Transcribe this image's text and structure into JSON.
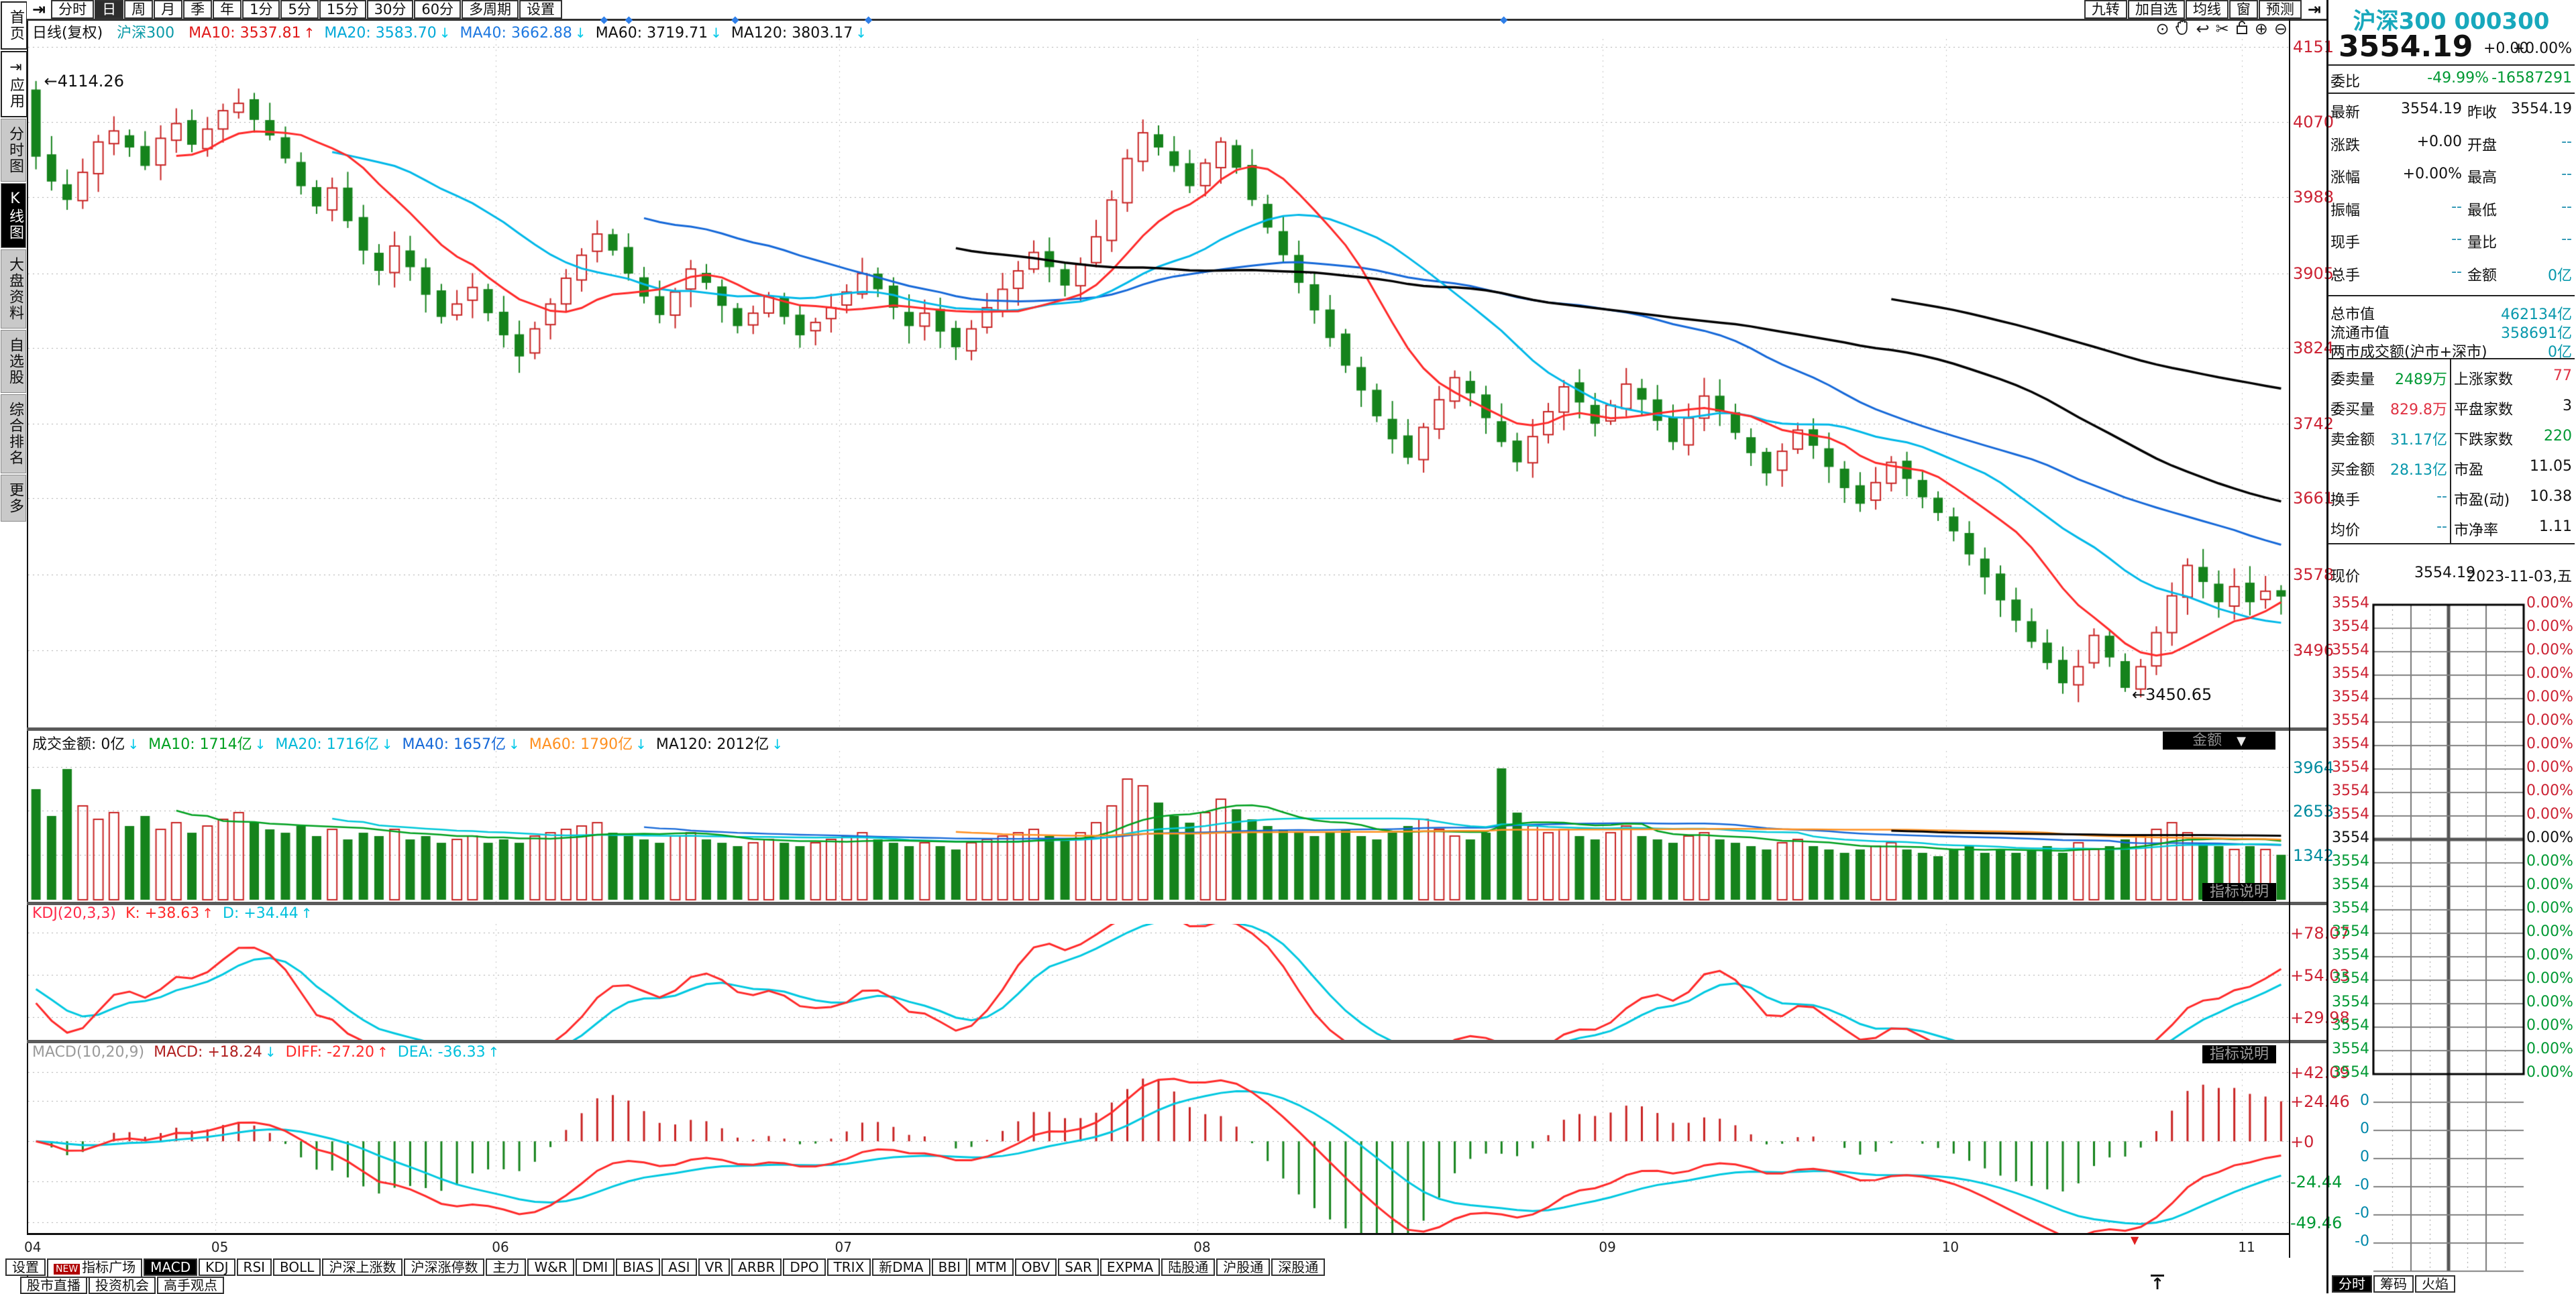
{
  "palette": {
    "up_red": "#c82323",
    "down_green": "#15831c",
    "ma10": "#ff2a2a",
    "ma20": "#00b8e8",
    "ma40": "#1568d8",
    "ma_black": "#000000",
    "vol_ma10": "#00a020",
    "vol_ma20": "#00c8d8",
    "vol_ma40": "#1568d8",
    "vol_ma60": "#ff9020",
    "vol_ma120": "#000000",
    "kdj_k": "#ff2a2a",
    "kdj_d": "#00c8e0",
    "macd_diff": "#ff2a2a",
    "macd_dea": "#00c8e0",
    "axis_red": "#cc2233",
    "axis_teal": "#008ca0",
    "axis_green": "#009933"
  },
  "sidebar": {
    "items": [
      {
        "label": "首页",
        "style": "frame",
        "selected": false
      },
      {
        "label": "应用",
        "style": "frame",
        "icon": "play-to-bar",
        "selected": false
      },
      {
        "label": "分时图",
        "style": "plain",
        "selected": false
      },
      {
        "label": "K线图",
        "style": "plain",
        "selected": true
      },
      {
        "label": "大盘资料",
        "style": "plain",
        "selected": false
      },
      {
        "label": "自选股",
        "style": "plain",
        "selected": false
      },
      {
        "label": "综合排名",
        "style": "plain",
        "selected": false
      },
      {
        "label": "更多",
        "style": "plain",
        "selected": false
      }
    ]
  },
  "toolbar": {
    "left_icon": "⇥",
    "periods": [
      {
        "label": "分时",
        "selected": false
      },
      {
        "label": "日",
        "selected": true
      },
      {
        "label": "周",
        "selected": false
      },
      {
        "label": "月",
        "selected": false
      },
      {
        "label": "季",
        "selected": false
      },
      {
        "label": "年",
        "selected": false
      },
      {
        "label": "1分",
        "selected": false
      },
      {
        "label": "5分",
        "selected": false
      },
      {
        "label": "15分",
        "selected": false
      },
      {
        "label": "30分",
        "selected": false
      },
      {
        "label": "60分",
        "selected": false
      },
      {
        "label": "多周期",
        "selected": false
      },
      {
        "label": "设置",
        "selected": false
      }
    ],
    "right_buttons": [
      "九转",
      "加自选",
      "均线",
      "窗",
      "预测"
    ],
    "right_icon": "⇥"
  },
  "legend": {
    "period": "日线(复权)",
    "symbol": "沪深300",
    "items": [
      {
        "text": "MA10: 3537.81",
        "color": "#e01818",
        "arrow": "↑",
        "arrow_color": "#e01818"
      },
      {
        "text": "MA20: 3583.70",
        "color": "#00a8d8",
        "arrow": "↓",
        "arrow_color": "#00c8e8"
      },
      {
        "text": "MA40: 3662.88",
        "color": "#1e78e0",
        "arrow": "↓",
        "arrow_color": "#00c8e8"
      },
      {
        "text": "MA60: 3719.71",
        "color": "#101010",
        "arrow": "↓",
        "arrow_color": "#00c8e8"
      },
      {
        "text": "MA120: 3803.17",
        "color": "#101010",
        "arrow": "↓",
        "arrow_color": "#00c8e8"
      }
    ]
  },
  "chart_icons": [
    "eye",
    "hand",
    "undo",
    "scissors",
    "lock",
    "zoom-in",
    "zoom-out"
  ],
  "markers": {
    "glyph": "◆",
    "fractions": [
      0.253,
      0.264,
      0.311,
      0.37,
      0.651
    ]
  },
  "chart_data": {
    "type": "candlestick",
    "symbol": "沪深300",
    "period": "日线",
    "x_labels": [
      "04",
      "05",
      "06",
      "07",
      "08",
      "09",
      "10",
      "11"
    ],
    "month_start_indices": [
      0,
      12,
      30,
      52,
      75,
      101,
      123,
      142
    ],
    "closes": [
      4032,
      4005,
      3985,
      4015,
      4048,
      4060,
      4042,
      4022,
      4052,
      4068,
      4045,
      4062,
      4082,
      4090,
      4072,
      4055,
      4030,
      4000,
      3978,
      3998,
      3962,
      3930,
      3908,
      3935,
      3912,
      3882,
      3858,
      3872,
      3890,
      3862,
      3838,
      3815,
      3845,
      3872,
      3900,
      3925,
      3948,
      3930,
      3905,
      3880,
      3860,
      3885,
      3910,
      3895,
      3870,
      3848,
      3862,
      3880,
      3858,
      3838,
      3852,
      3868,
      3885,
      3905,
      3888,
      3868,
      3848,
      3862,
      3842,
      3825,
      3845,
      3868,
      3888,
      3908,
      3928,
      3912,
      3892,
      3915,
      3945,
      3985,
      4030,
      4058,
      4042,
      4022,
      4000,
      4025,
      4048,
      4020,
      3985,
      3955,
      3925,
      3895,
      3865,
      3835,
      3805,
      3778,
      3750,
      3725,
      3705,
      3738,
      3768,
      3792,
      3775,
      3748,
      3722,
      3700,
      3728,
      3755,
      3782,
      3765,
      3742,
      3762,
      3785,
      3768,
      3745,
      3722,
      3748,
      3772,
      3755,
      3732,
      3710,
      3688,
      3712,
      3735,
      3718,
      3695,
      3672,
      3655,
      3678,
      3700,
      3682,
      3662,
      3645,
      3625,
      3600,
      3575,
      3550,
      3528,
      3505,
      3482,
      3460,
      3478,
      3512,
      3488,
      3455,
      3478,
      3515,
      3555,
      3588,
      3570,
      3548,
      3565,
      3548,
      3560,
      3554.19
    ],
    "volumes": [
      3300,
      2500,
      3900,
      2800,
      2400,
      2600,
      2200,
      2500,
      2100,
      2300,
      2000,
      2200,
      2400,
      2600,
      2300,
      2100,
      2000,
      2200,
      1900,
      2100,
      1800,
      2000,
      1900,
      2100,
      1800,
      1900,
      1700,
      1800,
      1900,
      1700,
      1800,
      1700,
      1900,
      2000,
      2100,
      2200,
      2300,
      2000,
      1900,
      1800,
      1700,
      1900,
      2000,
      1800,
      1700,
      1600,
      1700,
      1800,
      1700,
      1600,
      1700,
      1800,
      1900,
      2000,
      1800,
      1700,
      1600,
      1700,
      1600,
      1500,
      1700,
      1800,
      1900,
      2000,
      2100,
      1900,
      1800,
      2000,
      2300,
      2800,
      3600,
      3400,
      2900,
      2500,
      2300,
      2600,
      3000,
      2700,
      2400,
      2200,
      2100,
      2000,
      1900,
      2000,
      2100,
      1900,
      1800,
      2000,
      2200,
      2400,
      2100,
      1900,
      1800,
      2000,
      3920,
      2600,
      2200,
      2000,
      2100,
      1900,
      1800,
      2000,
      2200,
      1900,
      1800,
      1700,
      1900,
      2000,
      1800,
      1700,
      1600,
      1500,
      1700,
      1800,
      1600,
      1500,
      1400,
      1500,
      1600,
      1700,
      1500,
      1400,
      1300,
      1500,
      1600,
      1400,
      1500,
      1400,
      1500,
      1600,
      1400,
      1700,
      1500,
      1600,
      1800,
      1900,
      2100,
      2300,
      2000,
      1700,
      1600,
      1500,
      1600,
      1500,
      1342
    ],
    "annotations": {
      "high_label": "4114.26",
      "high_index": 0,
      "low_label": "3450.65",
      "low_index": 134
    },
    "axes": {
      "price": [
        "4151",
        "4070",
        "3988",
        "3905",
        "3824",
        "3742",
        "3661",
        "3578",
        "3496"
      ],
      "volume": [
        "3964",
        "2653",
        "1342"
      ],
      "kdj": [
        "+78.07",
        "+54.03",
        "+29.98"
      ],
      "macd_pos": [
        "+42.09",
        "+24.46",
        "+0"
      ],
      "macd_neg": [
        "-24.44",
        "-49.46"
      ]
    }
  },
  "volume_header": {
    "items": [
      {
        "text": "成交金额: 0亿",
        "color": "#111111",
        "arrow": "↓",
        "arrow_color": "#00c8e8"
      },
      {
        "text": "MA10: 1714亿",
        "color": "#00a020",
        "arrow": "↓",
        "arrow_color": "#00c8e8"
      },
      {
        "text": "MA20: 1716亿",
        "color": "#00b8d8",
        "arrow": "↓",
        "arrow_color": "#00c8e8"
      },
      {
        "text": "MA40: 1657亿",
        "color": "#1568d8",
        "arrow": "↓",
        "arrow_color": "#00c8e8"
      },
      {
        "text": "MA60: 1790亿",
        "color": "#ff9020",
        "arrow": "↓",
        "arrow_color": "#00c8e8"
      },
      {
        "text": "MA120: 2012亿",
        "color": "#101010",
        "arrow": "↓",
        "arrow_color": "#00c8e8"
      }
    ],
    "dropdown_label": "金额",
    "dropdown_caret": "▼"
  },
  "kdj_header": {
    "title": "KDJ(20,3,3)",
    "title_color": "#ff2a4a",
    "items": [
      {
        "text": "K: +38.63",
        "color": "#ff2a2a",
        "arrow": "↑",
        "arrow_color": "#ff2a2a"
      },
      {
        "text": "D: +34.44",
        "color": "#00c0dc",
        "arrow": "↑",
        "arrow_color": "#00c0dc"
      }
    ],
    "info_button": "指标说明"
  },
  "macd_header": {
    "title": "MACD(10,20,9)",
    "title_color": "#9a9a9a",
    "items": [
      {
        "text": "MACD: +18.24",
        "color": "#b02020",
        "arrow": "↓",
        "arrow_color": "#00c8e8"
      },
      {
        "text": "DIFF: -27.20",
        "color": "#ff2a2a",
        "arrow": "↑",
        "arrow_color": "#ff2a2a"
      },
      {
        "text": "DEA: -36.33",
        "color": "#00c0dc",
        "arrow": "↑",
        "arrow_color": "#00c0dc"
      }
    ],
    "info_button": "指标说明"
  },
  "bottom_tabs": {
    "row1": [
      {
        "label": "设置"
      },
      {
        "label": "指标广场",
        "badge": "NEW"
      },
      {
        "label": "MACD",
        "selected": true
      },
      {
        "label": "KDJ"
      },
      {
        "label": "RSI"
      },
      {
        "label": "BOLL"
      },
      {
        "label": "沪深上涨数"
      },
      {
        "label": "沪深涨停数"
      },
      {
        "label": "主力"
      },
      {
        "label": "W&R"
      },
      {
        "label": "DMI"
      },
      {
        "label": "BIAS"
      },
      {
        "label": "ASI"
      },
      {
        "label": "VR"
      },
      {
        "label": "ARBR"
      },
      {
        "label": "DPO"
      },
      {
        "label": "TRIX"
      },
      {
        "label": "新DMA"
      },
      {
        "label": "BBI"
      },
      {
        "label": "MTM"
      },
      {
        "label": "OBV"
      },
      {
        "label": "SAR"
      },
      {
        "label": "EXPMA"
      },
      {
        "label": "陆股通"
      },
      {
        "label": "沪股通"
      },
      {
        "label": "深股通"
      }
    ],
    "row2": [
      {
        "label": "股市直播"
      },
      {
        "label": "投资机会"
      },
      {
        "label": "高手观点"
      }
    ],
    "scroll_top_icon": "↑"
  },
  "quote": {
    "name": "沪深300",
    "code": "000300",
    "price": "3554.19",
    "change": "+0.00",
    "change_pct": "+0.00%",
    "weibi": {
      "label": "委比",
      "value": "-49.99%",
      "diff": "-16587291"
    },
    "rows_a": [
      {
        "l1": "最新",
        "v1": "3554.19",
        "c1": "c-black",
        "l2": "昨收",
        "v2": "3554.19",
        "c2": "c-black"
      },
      {
        "l1": "涨跌",
        "v1": "+0.00",
        "c1": "c-black",
        "l2": "开盘",
        "v2": "--",
        "c2": "c-gray"
      },
      {
        "l1": "涨幅",
        "v1": "+0.00%",
        "c1": "c-black",
        "l2": "最高",
        "v2": "--",
        "c2": "c-gray"
      },
      {
        "l1": "振幅",
        "v1": "--",
        "c1": "c-gray",
        "l2": "最低",
        "v2": "--",
        "c2": "c-gray"
      },
      {
        "l1": "现手",
        "v1": "--",
        "c1": "c-gray",
        "l2": "量比",
        "v2": "--",
        "c2": "c-gray"
      },
      {
        "l1": "总手",
        "v1": "--",
        "c1": "c-gray",
        "l2": "金额",
        "v2": "0亿",
        "c2": "c-teal"
      }
    ],
    "rows_b": [
      {
        "label": "总市值",
        "value": "462134亿"
      },
      {
        "label": "流通市值",
        "value": "358691亿"
      },
      {
        "label": "两市成交额(沪市+深市)",
        "value": "0亿"
      }
    ],
    "rows_c": [
      {
        "l1": "委卖量",
        "v1": "2489万",
        "c1": "c-green",
        "l2": "上涨家数",
        "v2": "77",
        "c2": "c-red"
      },
      {
        "l1": "委买量",
        "v1": "829.8万",
        "c1": "c-red",
        "l2": "平盘家数",
        "v2": "3",
        "c2": "c-black"
      },
      {
        "l1": "卖金额",
        "v1": "31.17亿",
        "c1": "c-teal",
        "l2": "下跌家数",
        "v2": "220",
        "c2": "c-green"
      },
      {
        "l1": "买金额",
        "v1": "28.13亿",
        "c1": "c-teal",
        "l2": "市盈",
        "v2": "11.05",
        "c2": "c-black"
      },
      {
        "l1": "换手",
        "v1": "--",
        "c1": "c-gray",
        "l2": "市盈(动)",
        "v2": "10.38",
        "c2": "c-black"
      },
      {
        "l1": "均价",
        "v1": "--",
        "c1": "c-gray",
        "l2": "市净率",
        "v2": "1.11",
        "c2": "c-black"
      }
    ],
    "now_row": {
      "label": "现价",
      "value": "3554.19",
      "date": "2023-11-03,五"
    }
  },
  "mini_chart": {
    "price_label": "3554",
    "pct_label": "0.00%",
    "rows_above": 10,
    "rows_below": 10,
    "vol_labels": [
      "0",
      "0",
      "0",
      "-0",
      "-0",
      "-0"
    ],
    "tabs": [
      {
        "label": "分时",
        "selected": true
      },
      {
        "label": "筹码",
        "selected": false
      },
      {
        "label": "火焰",
        "selected": false
      }
    ]
  }
}
